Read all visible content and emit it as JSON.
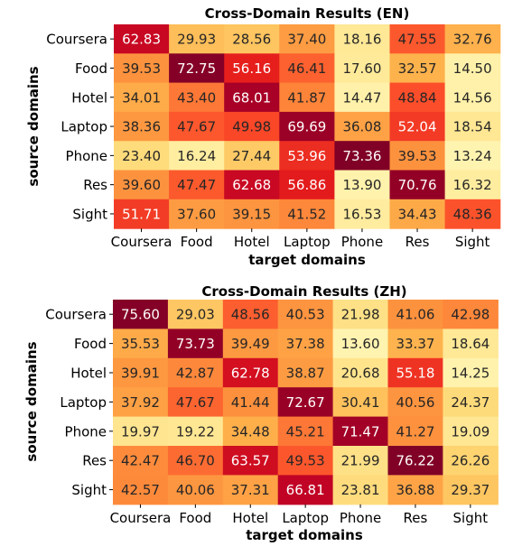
{
  "chart_data": [
    {
      "type": "heatmap",
      "title": "Cross-Domain Results (EN)",
      "xlabel": "target domains",
      "ylabel": "source domains",
      "x_categories": [
        "Coursera",
        "Food",
        "Hotel",
        "Laptop",
        "Phone",
        "Res",
        "Sight"
      ],
      "y_categories": [
        "Coursera",
        "Food",
        "Hotel",
        "Laptop",
        "Phone",
        "Res",
        "Sight"
      ],
      "values": [
        [
          62.83,
          29.93,
          28.56,
          37.4,
          18.16,
          47.55,
          32.76
        ],
        [
          39.53,
          72.75,
          56.16,
          46.41,
          17.6,
          32.57,
          14.5
        ],
        [
          34.01,
          43.4,
          68.01,
          41.87,
          14.47,
          48.84,
          14.56
        ],
        [
          38.36,
          47.67,
          49.98,
          69.69,
          36.08,
          52.04,
          18.54
        ],
        [
          23.4,
          16.24,
          27.44,
          53.96,
          73.36,
          39.53,
          13.24
        ],
        [
          39.6,
          47.47,
          62.68,
          56.86,
          13.9,
          70.76,
          16.32
        ],
        [
          51.71,
          37.6,
          39.15,
          41.52,
          16.53,
          34.43,
          48.36
        ]
      ],
      "labels": [
        [
          "62.83",
          "29.93",
          "28.56",
          "37.40",
          "18.16",
          "47.55",
          "32.76"
        ],
        [
          "39.53",
          "72.75",
          "56.16",
          "46.41",
          "17.60",
          "32.57",
          "14.50"
        ],
        [
          "34.01",
          "43.40",
          "68.01",
          "41.87",
          "14.47",
          "48.84",
          "14.56"
        ],
        [
          "38.36",
          "47.67",
          "49.98",
          "69.69",
          "36.08",
          "52.04",
          "18.54"
        ],
        [
          "23.40",
          "16.24",
          "27.44",
          "53.96",
          "73.36",
          "39.53",
          "13.24"
        ],
        [
          "39.60",
          "47.47",
          "62.68",
          "56.86",
          "13.90",
          "70.76",
          "16.32"
        ],
        [
          "51.71",
          "37.60",
          "39.15",
          "41.52",
          "16.53",
          "34.43",
          "48.36"
        ]
      ],
      "colormap": "YlOrRd",
      "colorbar": false,
      "grid": false
    },
    {
      "type": "heatmap",
      "title": "Cross-Domain Results (ZH)",
      "xlabel": "target domains",
      "ylabel": "source domains",
      "x_categories": [
        "Coursera",
        "Food",
        "Hotel",
        "Laptop",
        "Phone",
        "Res",
        "Sight"
      ],
      "y_categories": [
        "Coursera",
        "Food",
        "Hotel",
        "Laptop",
        "Phone",
        "Res",
        "Sight"
      ],
      "values": [
        [
          75.6,
          29.03,
          48.56,
          40.53,
          21.98,
          41.06,
          42.98
        ],
        [
          35.53,
          73.73,
          39.49,
          37.38,
          13.6,
          33.37,
          18.64
        ],
        [
          39.91,
          42.87,
          62.78,
          38.87,
          20.68,
          55.18,
          14.25
        ],
        [
          37.92,
          47.67,
          41.44,
          72.67,
          30.41,
          40.56,
          24.37
        ],
        [
          19.97,
          19.22,
          34.48,
          45.21,
          71.47,
          41.27,
          19.09
        ],
        [
          42.47,
          46.7,
          63.57,
          49.53,
          21.99,
          76.22,
          26.26
        ],
        [
          42.57,
          40.06,
          37.31,
          66.81,
          23.81,
          36.88,
          29.37
        ]
      ],
      "labels": [
        [
          "75.60",
          "29.03",
          "48.56",
          "40.53",
          "21.98",
          "41.06",
          "42.98"
        ],
        [
          "35.53",
          "73.73",
          "39.49",
          "37.38",
          "13.60",
          "33.37",
          "18.64"
        ],
        [
          "39.91",
          "42.87",
          "62.78",
          "38.87",
          "20.68",
          "55.18",
          "14.25"
        ],
        [
          "37.92",
          "47.67",
          "41.44",
          "72.67",
          "30.41",
          "40.56",
          "24.37"
        ],
        [
          "19.97",
          "19.22",
          "34.48",
          "45.21",
          "71.47",
          "41.27",
          "19.09"
        ],
        [
          "42.47",
          "46.70",
          "63.57",
          "49.53",
          "21.99",
          "76.22",
          "26.26"
        ],
        [
          "42.57",
          "40.06",
          "37.31",
          "66.81",
          "23.81",
          "36.88",
          "29.37"
        ]
      ],
      "colormap": "YlOrRd",
      "colorbar": false,
      "grid": false
    }
  ]
}
